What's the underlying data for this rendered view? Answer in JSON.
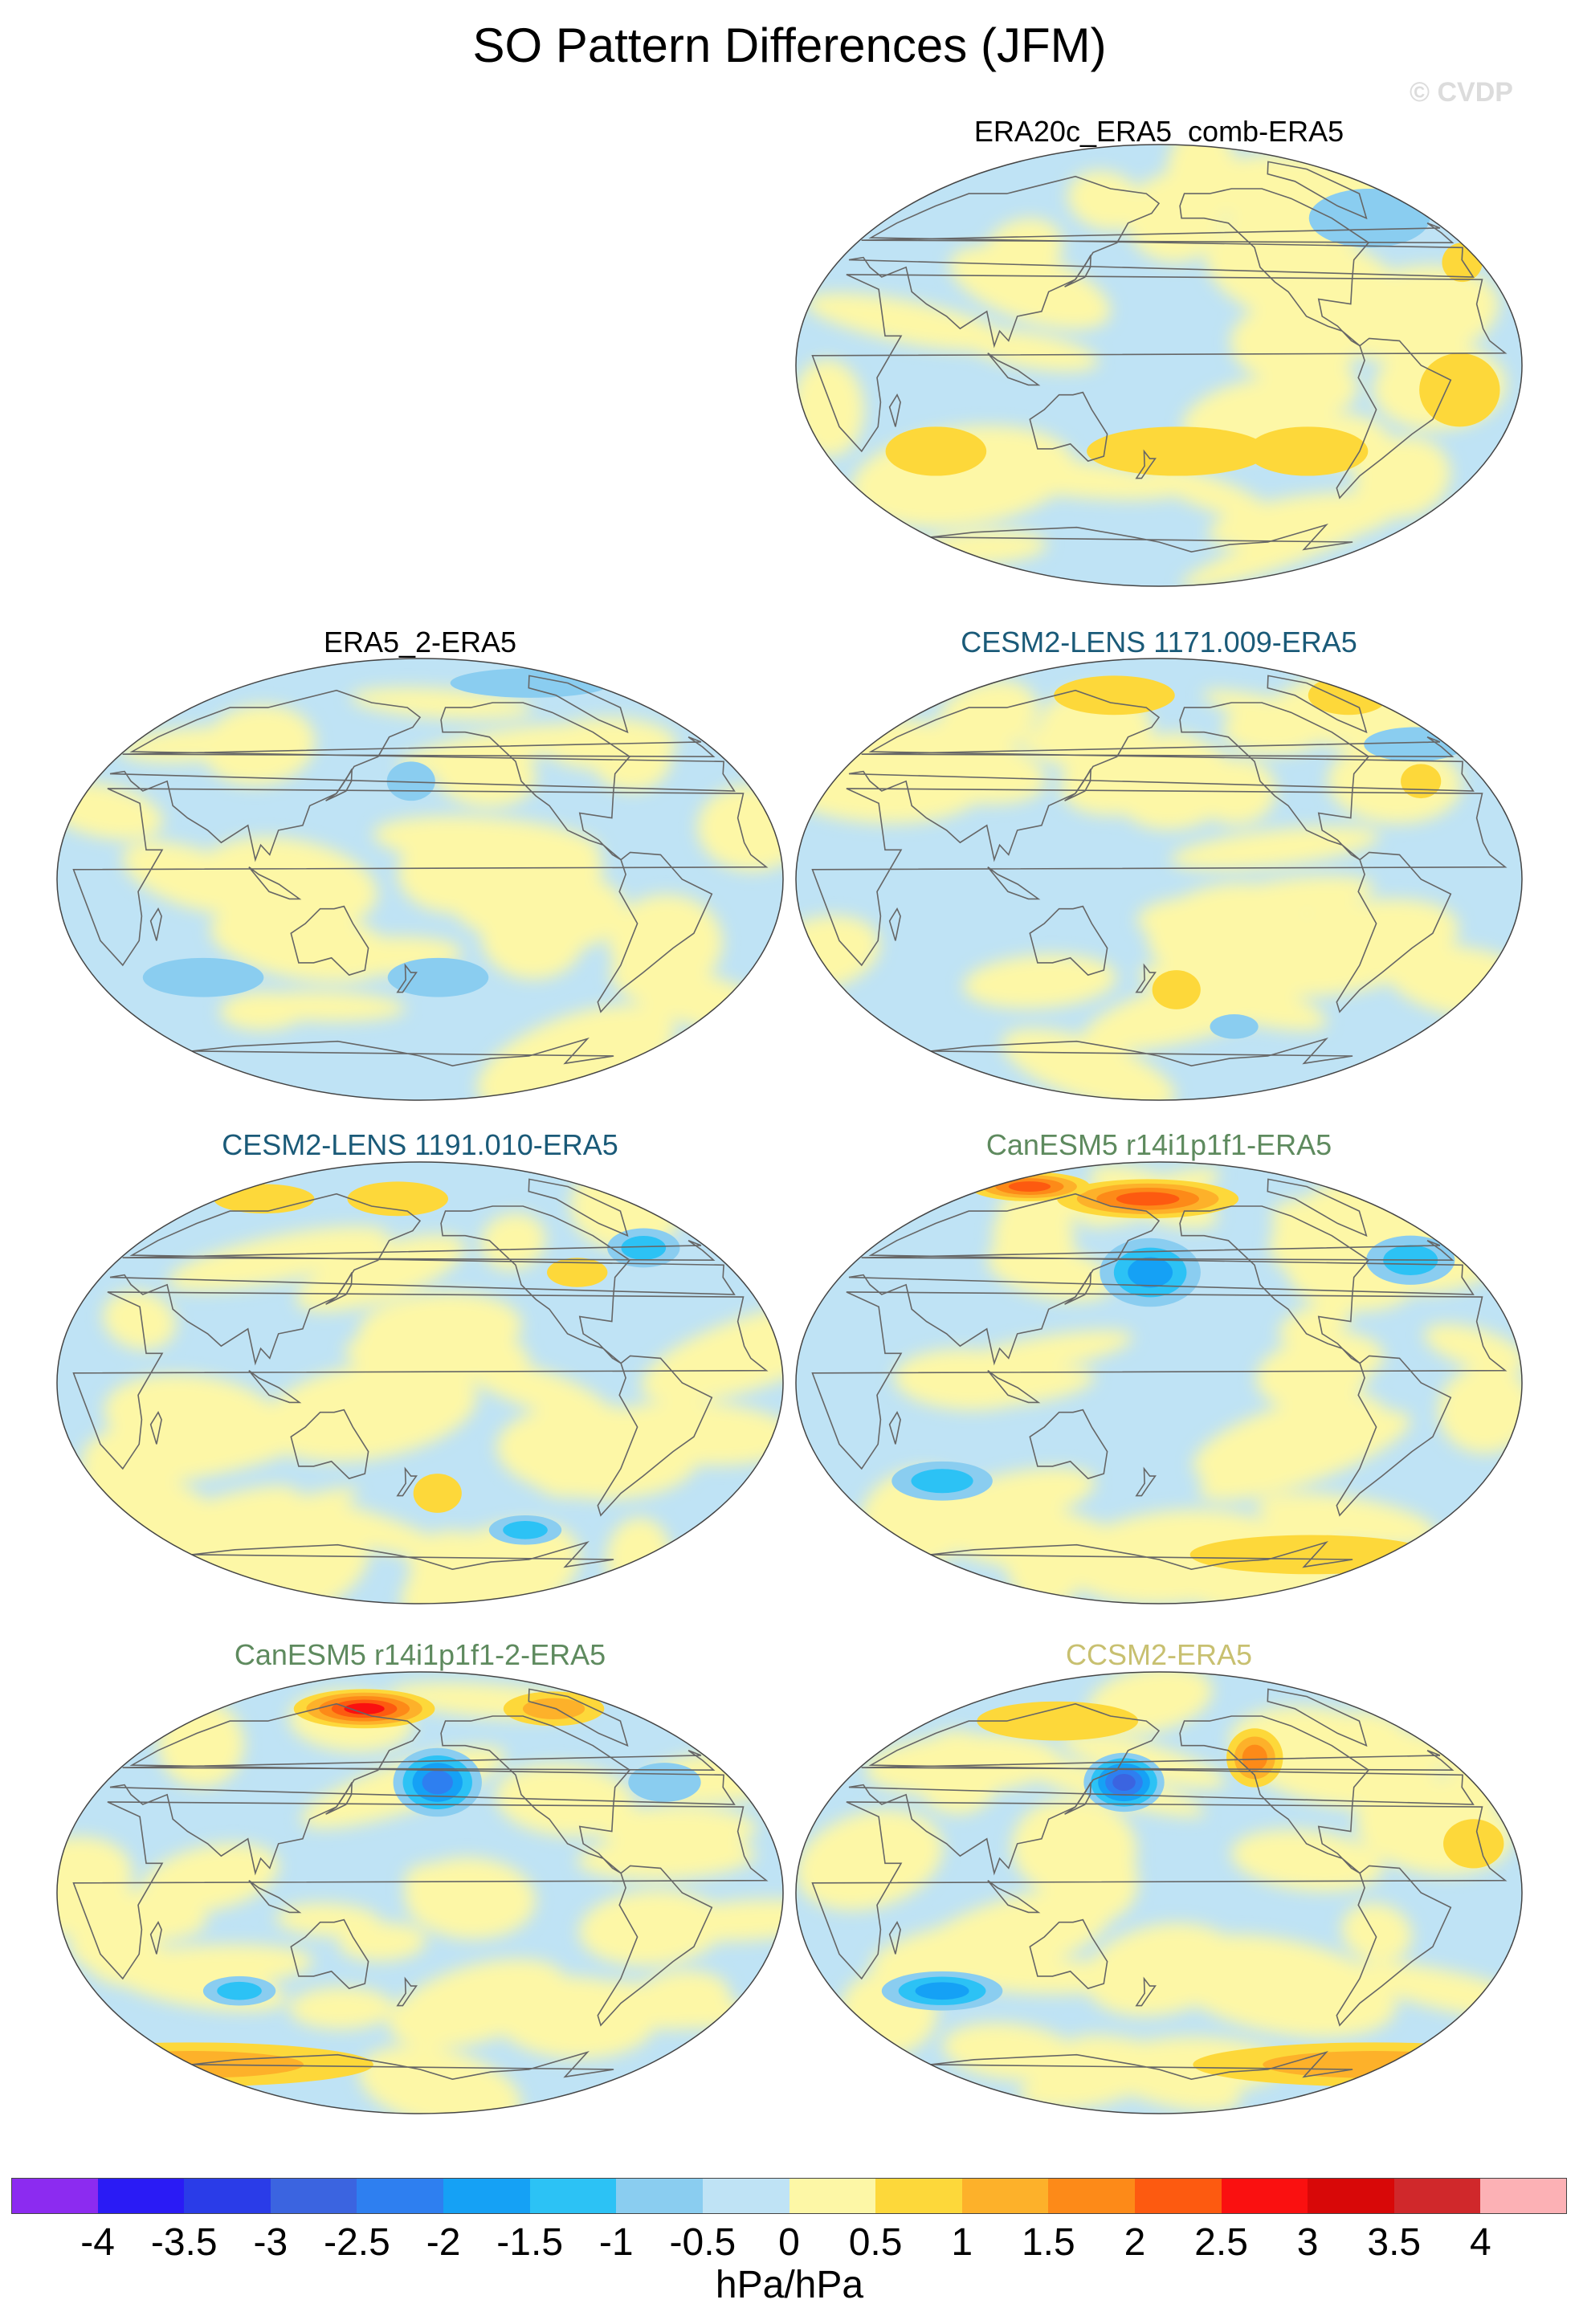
{
  "figure": {
    "title": "SO Pattern Differences (JFM)",
    "watermark": "© CVDP"
  },
  "panels": [
    {
      "id": "p1",
      "title": "ERA20c_ERA5_comb-ERA5",
      "title_color": "#000000",
      "dominant": "mixed",
      "features": [
        {
          "lon": -40,
          "lat": 60,
          "rx": 30,
          "ry": 12,
          "level": -1
        },
        {
          "lon": -10,
          "lat": 42,
          "rx": 10,
          "ry": 8,
          "level": 1
        },
        {
          "lon": -170,
          "lat": -35,
          "rx": 45,
          "ry": 10,
          "level": 1
        },
        {
          "lon": -100,
          "lat": -35,
          "rx": 30,
          "ry": 10,
          "level": 1
        },
        {
          "lon": 60,
          "lat": -35,
          "rx": 25,
          "ry": 10,
          "level": 1
        },
        {
          "lon": -30,
          "lat": -10,
          "rx": 20,
          "ry": 15,
          "level": 1
        }
      ]
    },
    {
      "id": "p2",
      "title": "ERA5_2-ERA5",
      "title_color": "#000000",
      "dominant": "mixed",
      "features": [
        {
          "lon": 175,
          "lat": 40,
          "rx": 12,
          "ry": 8,
          "level": -1
        },
        {
          "lon": -170,
          "lat": -40,
          "rx": 25,
          "ry": 8,
          "level": -1
        },
        {
          "lon": 60,
          "lat": -40,
          "rx": 30,
          "ry": 8,
          "level": -1
        },
        {
          "lon": -60,
          "lat": 80,
          "rx": 40,
          "ry": 6,
          "level": -1
        }
      ]
    },
    {
      "id": "p3",
      "title": "CESM2-LENS 1171.009-ERA5",
      "title_color": "#1a5a78",
      "dominant": "mixed",
      "features": [
        {
          "lon": 140,
          "lat": 75,
          "rx": 30,
          "ry": 8,
          "level": 1
        },
        {
          "lon": -10,
          "lat": 75,
          "rx": 20,
          "ry": 8,
          "level": 1
        },
        {
          "lon": -20,
          "lat": 55,
          "rx": 25,
          "ry": 7,
          "level": -1
        },
        {
          "lon": -170,
          "lat": -45,
          "rx": 12,
          "ry": 8,
          "level": 1
        },
        {
          "lon": -130,
          "lat": -60,
          "rx": 12,
          "ry": 5,
          "level": -1
        },
        {
          "lon": -35,
          "lat": 40,
          "rx": 10,
          "ry": 7,
          "level": 1
        }
      ]
    },
    {
      "id": "p4",
      "title": "CESM2-LENS 1191.010-ERA5",
      "title_color": "#1a5a78",
      "dominant": "mixed",
      "features": [
        {
          "lon": -40,
          "lat": 55,
          "rx": 18,
          "ry": 8,
          "level": -2
        },
        {
          "lon": 160,
          "lat": 75,
          "rx": 25,
          "ry": 7,
          "level": 1
        },
        {
          "lon": -90,
          "lat": 45,
          "rx": 15,
          "ry": 6,
          "level": 1
        },
        {
          "lon": 40,
          "lat": 75,
          "rx": 25,
          "ry": 6,
          "level": 1
        },
        {
          "lon": -170,
          "lat": -45,
          "rx": 12,
          "ry": 8,
          "level": 1
        },
        {
          "lon": -110,
          "lat": -60,
          "rx": 18,
          "ry": 6,
          "level": -2
        }
      ]
    },
    {
      "id": "p5",
      "title": "CanESM5 r14i1p1f1-ERA5",
      "title_color": "#5e8a5e",
      "dominant": "mixed",
      "features": [
        {
          "lon": 170,
          "lat": 75,
          "rx": 45,
          "ry": 8,
          "level": 4
        },
        {
          "lon": 40,
          "lat": 80,
          "rx": 30,
          "ry": 6,
          "level": 4
        },
        {
          "lon": 175,
          "lat": 45,
          "rx": 25,
          "ry": 14,
          "level": -3
        },
        {
          "lon": -30,
          "lat": 50,
          "rx": 22,
          "ry": 10,
          "level": -2
        },
        {
          "lon": 60,
          "lat": -40,
          "rx": 25,
          "ry": 8,
          "level": -2
        },
        {
          "lon": -60,
          "lat": -70,
          "rx": 60,
          "ry": 8,
          "level": 1
        }
      ]
    },
    {
      "id": "p6",
      "title": "CanESM5 r14i1p1f1-2-ERA5",
      "title_color": "#5e8a5e",
      "dominant": "mixed",
      "features": [
        {
          "lon": 130,
          "lat": 75,
          "rx": 35,
          "ry": 8,
          "level": 5
        },
        {
          "lon": -60,
          "lat": 75,
          "rx": 25,
          "ry": 7,
          "level": 2
        },
        {
          "lon": -170,
          "lat": 45,
          "rx": 22,
          "ry": 14,
          "level": -4
        },
        {
          "lon": 80,
          "lat": -40,
          "rx": 18,
          "ry": 6,
          "level": -2
        },
        {
          "lon": -40,
          "lat": 45,
          "rx": 18,
          "ry": 8,
          "level": -1
        },
        {
          "lon": 0,
          "lat": -70,
          "rx": 90,
          "ry": 9,
          "level": 2
        }
      ]
    },
    {
      "id": "p7",
      "title": "CCSM2-ERA5",
      "title_color": "#c8c070",
      "dominant": "mixed",
      "features": [
        {
          "lon": 160,
          "lat": 45,
          "rx": 20,
          "ry": 12,
          "level": -5
        },
        {
          "lon": -120,
          "lat": 55,
          "rx": 14,
          "ry": 12,
          "level": 3
        },
        {
          "lon": 60,
          "lat": -40,
          "rx": 30,
          "ry": 8,
          "level": -3
        },
        {
          "lon": -10,
          "lat": -70,
          "rx": 90,
          "ry": 9,
          "level": 2
        },
        {
          "lon": -20,
          "lat": 20,
          "rx": 15,
          "ry": 10,
          "level": 1
        },
        {
          "lon": 100,
          "lat": 70,
          "rx": 40,
          "ry": 8,
          "level": 1
        }
      ]
    }
  ],
  "colorbar": {
    "colors": [
      "#8c2bf0",
      "#2a1bf5",
      "#2a3ce8",
      "#3b64e0",
      "#2e7ff0",
      "#15a1f5",
      "#2cc2f5",
      "#8acdf0",
      "#bfe3f5",
      "#fdf7a6",
      "#fdd83a",
      "#fdb12a",
      "#fd8a18",
      "#fd5a10",
      "#fa1010",
      "#d80808",
      "#d0282b",
      "#fcb1b5"
    ],
    "ticks": [
      "-4",
      "-3.5",
      "-3",
      "-2.5",
      "-2",
      "-1.5",
      "-1",
      "-0.5",
      "0",
      "0.5",
      "1",
      "1.5",
      "2",
      "2.5",
      "3",
      "3.5",
      "4"
    ],
    "units": "hPa/hPa"
  }
}
